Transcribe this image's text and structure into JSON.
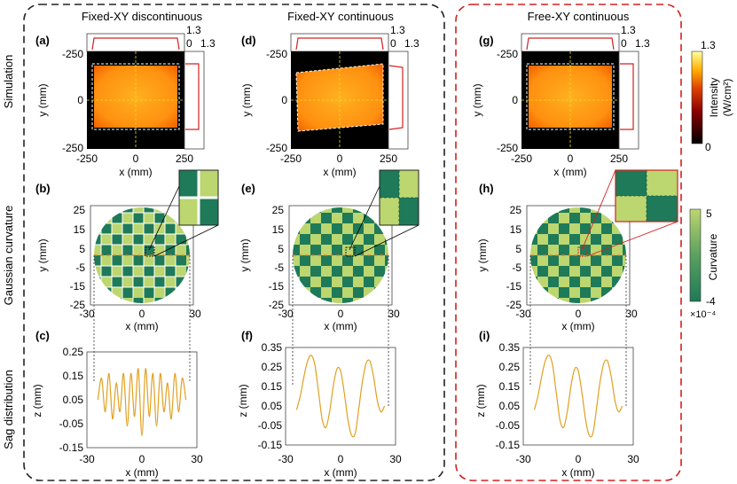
{
  "row_labels": [
    "Simulation",
    "Gaussian curvature",
    "Sag distribution"
  ],
  "columns": [
    {
      "title": "Fixed-XY discontinuous",
      "panels": [
        "(a)",
        "(b)",
        "(c)"
      ]
    },
    {
      "title": "Fixed-XY continuous",
      "panels": [
        "(d)",
        "(e)",
        "(f)"
      ]
    },
    {
      "title": "Free-XY continuous",
      "panels": [
        "(g)",
        "(h)",
        "(i)"
      ]
    }
  ],
  "colors": {
    "left_box_border": "#222222",
    "right_box_border": "#d42020",
    "profile_red": "#d42020",
    "guide_yellow": "#f0e020",
    "guide_orange": "#f07820",
    "curvature_high": "#bcd670",
    "curvature_low": "#1e7a58",
    "sag_line": "#e0a020"
  },
  "simulation": {
    "x_ticks": [
      "-250",
      "0",
      "250"
    ],
    "y_ticks": [
      "-250",
      "0",
      "-250"
    ],
    "xlabel": "x (mm)",
    "ylabel": "y (mm)",
    "profile_top_labels": [
      "1.3",
      "0"
    ],
    "profile_side_label": "1.3",
    "colorbar": {
      "max_label": "1.3",
      "min_label": "0",
      "label": "Intensity",
      "unit": "(W/cm²)"
    }
  },
  "curvature": {
    "x_ticks": [
      "-30",
      "0",
      "30"
    ],
    "y_ticks": [
      "25",
      "15",
      "5",
      "-5",
      "-15",
      "-25"
    ],
    "xlabel": "x (mm)",
    "ylabel": "y (mm)",
    "colorbar": {
      "max_label": "5",
      "min_label": "-4",
      "label": "Curvature",
      "scale": "×10⁻⁴"
    }
  },
  "sag": {
    "xlabel": "x (mm)",
    "ylabel": "z (mm)",
    "x_ticks": [
      "-30",
      "0",
      "30"
    ],
    "panel_c_y_ticks": [
      "0.25",
      "0.15",
      "0.05",
      "-0.05",
      "-0.15"
    ],
    "panel_fi_y_ticks": [
      "0.35",
      "0.25",
      "0.15",
      "0.05",
      "-0.05",
      "-0.15"
    ]
  },
  "chart_data": [
    {
      "type": "line",
      "panel": "(c)",
      "xlabel": "x (mm)",
      "ylabel": "z (mm)",
      "xlim": [
        -30,
        30
      ],
      "ylim": [
        -0.15,
        0.25
      ],
      "x": [
        -24,
        -22,
        -20,
        -18,
        -16,
        -14,
        -12,
        -10,
        -8,
        -6,
        -4,
        -2,
        0,
        2,
        4,
        6,
        8,
        10,
        12,
        14,
        16,
        18,
        20,
        22,
        24
      ],
      "y": [
        0.05,
        0.14,
        0.0,
        0.16,
        -0.03,
        0.12,
        0.0,
        0.16,
        -0.06,
        0.16,
        -0.02,
        0.18,
        -0.1,
        0.18,
        -0.02,
        0.16,
        -0.06,
        0.16,
        0.0,
        0.12,
        -0.03,
        0.16,
        0.0,
        0.14,
        0.05
      ]
    },
    {
      "type": "line",
      "panel": "(f)",
      "xlabel": "x (mm)",
      "ylabel": "z (mm)",
      "xlim": [
        -30,
        30
      ],
      "ylim": [
        -0.15,
        0.35
      ],
      "x": [
        -24,
        -22,
        -20,
        -18,
        -16,
        -14,
        -12,
        -10,
        -8,
        -6,
        -4,
        -2,
        0,
        2,
        4,
        6,
        8,
        10,
        12,
        14,
        16,
        18,
        20,
        22,
        24
      ],
      "y": [
        0.03,
        0.1,
        0.2,
        0.28,
        0.31,
        0.26,
        0.12,
        -0.02,
        -0.06,
        0.02,
        0.15,
        0.24,
        0.23,
        0.12,
        -0.02,
        -0.1,
        -0.09,
        0.04,
        0.18,
        0.27,
        0.28,
        0.2,
        0.08,
        0.02,
        0.05
      ]
    },
    {
      "type": "line",
      "panel": "(i)",
      "xlabel": "x (mm)",
      "ylabel": "z (mm)",
      "xlim": [
        -30,
        30
      ],
      "ylim": [
        -0.15,
        0.35
      ],
      "x": [
        -24,
        -22,
        -20,
        -18,
        -16,
        -14,
        -12,
        -10,
        -8,
        -6,
        -4,
        -2,
        0,
        2,
        4,
        6,
        8,
        10,
        12,
        14,
        16,
        18,
        20,
        22,
        24
      ],
      "y": [
        0.03,
        0.1,
        0.2,
        0.28,
        0.31,
        0.26,
        0.12,
        -0.02,
        -0.06,
        0.02,
        0.15,
        0.24,
        0.23,
        0.12,
        -0.02,
        -0.1,
        -0.09,
        0.04,
        0.18,
        0.27,
        0.28,
        0.2,
        0.08,
        0.02,
        0.05
      ]
    }
  ]
}
